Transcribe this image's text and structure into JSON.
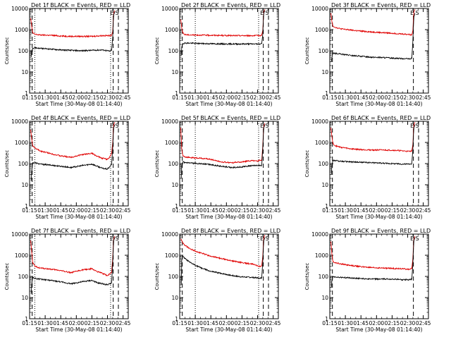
{
  "figure": {
    "colors": {
      "events": "#000000",
      "lld": "#e00000",
      "frame": "#000000",
      "background": "#ffffff"
    },
    "xtick_labels": [
      "01:15",
      "01:30",
      "01:45",
      "02:00",
      "02:15",
      "02:30",
      "02:45"
    ],
    "ytick_labels": [
      "1",
      "10",
      "100",
      "1000",
      "10000"
    ],
    "ylabel": "Counts/sec",
    "markers": [
      "E",
      "S"
    ]
  },
  "chart_data": [
    {
      "type": "line",
      "title": "Det 1f  BLACK = Events, RED = LLD",
      "xlabel": "Start Time (30-May-08 01:14:40)",
      "ylabel": "Counts/sec",
      "x_unit": "minutes",
      "xlim": [
        75,
        170
      ],
      "ylim": [
        1,
        10000
      ],
      "yscale": "log",
      "series": [
        {
          "x": [
            76,
            77,
            78,
            80,
            85,
            95,
            105,
            115,
            125,
            135,
            145,
            150,
            152,
            154,
            155,
            155.5,
            156,
            157
          ],
          "values": [
            3500,
            1500,
            700,
            600,
            560,
            540,
            500,
            480,
            480,
            480,
            520,
            520,
            520,
            540,
            800,
            2500,
            6000,
            8000
          ]
        },
        {
          "x": [
            76.5,
            77,
            78,
            80,
            85,
            95,
            105,
            115,
            125,
            135,
            145,
            150,
            152,
            154,
            155,
            155.5,
            156,
            157
          ],
          "values": [
            50,
            100,
            130,
            140,
            130,
            120,
            110,
            105,
            100,
            105,
            110,
            100,
            95,
            105,
            400,
            2000,
            5000,
            7000
          ]
        }
      ],
      "vlines_dotted": [
        80,
        153
      ],
      "vlines_dashed": [
        77.5,
        155.5,
        160.5
      ]
    },
    {
      "type": "line",
      "title": "Det 2f  BLACK = Events, RED = LLD",
      "xlabel": "Start Time (30-May-08 01:14:40)",
      "ylabel": "Counts/sec",
      "x_unit": "minutes",
      "xlim": [
        75,
        170
      ],
      "ylim": [
        1,
        10000
      ],
      "yscale": "log",
      "series": [
        {
          "x": [
            76,
            77,
            78,
            80,
            85,
            95,
            105,
            115,
            125,
            135,
            145,
            150,
            152,
            154,
            155,
            155.5,
            156,
            157
          ],
          "values": [
            3000,
            1200,
            700,
            580,
            560,
            550,
            540,
            530,
            520,
            520,
            520,
            520,
            520,
            560,
            900,
            3000,
            7000,
            9000
          ]
        },
        {
          "x": [
            76.5,
            77,
            78,
            80,
            85,
            95,
            105,
            115,
            125,
            135,
            145,
            150,
            152,
            154,
            155,
            155.5,
            156,
            157
          ],
          "values": [
            60,
            150,
            220,
            230,
            230,
            220,
            215,
            210,
            210,
            210,
            210,
            210,
            210,
            220,
            600,
            2500,
            6000,
            8000
          ]
        }
      ],
      "vlines_dotted": [
        90,
        151
      ],
      "vlines_dashed": [
        77.5,
        155.5,
        160.5
      ]
    },
    {
      "type": "line",
      "title": "Det 3f  BLACK = Events, RED = LLD",
      "xlabel": "Start Time (30-May-08 01:14:40)",
      "ylabel": "Counts/sec",
      "x_unit": "minutes",
      "xlim": [
        75,
        170
      ],
      "ylim": [
        1,
        10000
      ],
      "yscale": "log",
      "series": [
        {
          "x": [
            76,
            77,
            78,
            80,
            85,
            95,
            105,
            115,
            125,
            135,
            145,
            150,
            152,
            154,
            155,
            155.5,
            156,
            157
          ],
          "values": [
            6000,
            2500,
            1500,
            1300,
            1100,
            950,
            850,
            780,
            720,
            680,
            620,
            600,
            580,
            560,
            900,
            3000,
            7000,
            9000
          ]
        },
        {
          "x": [
            76.5,
            77,
            78,
            80,
            85,
            95,
            105,
            115,
            125,
            135,
            145,
            150,
            152,
            154,
            155,
            155.5,
            156,
            157
          ],
          "values": [
            30,
            45,
            80,
            75,
            70,
            60,
            55,
            50,
            48,
            45,
            43,
            42,
            40,
            45,
            300,
            1500,
            4000,
            6000
          ]
        }
      ],
      "vlines_dotted": [],
      "vlines_dashed": [
        77.5,
        155.5
      ]
    },
    {
      "type": "line",
      "title": "Det 4f  BLACK = Events, RED = LLD",
      "xlabel": "Start Time (30-May-08 01:14:40)",
      "ylabel": "Counts/sec",
      "x_unit": "minutes",
      "xlim": [
        75,
        170
      ],
      "ylim": [
        1,
        10000
      ],
      "yscale": "log",
      "series": [
        {
          "x": [
            76,
            77,
            78,
            80,
            85,
            95,
            105,
            115,
            125,
            135,
            140,
            145,
            150,
            152,
            154,
            155,
            155.5,
            156,
            157
          ],
          "values": [
            4000,
            1500,
            700,
            550,
            400,
            300,
            230,
            200,
            260,
            310,
            220,
            180,
            160,
            200,
            300,
            900,
            3000,
            7000,
            9000
          ]
        },
        {
          "x": [
            76.5,
            77,
            78,
            80,
            85,
            95,
            105,
            115,
            125,
            135,
            140,
            145,
            150,
            152,
            154,
            155,
            155.5,
            156,
            157
          ],
          "values": [
            15,
            40,
            110,
            110,
            95,
            85,
            75,
            65,
            80,
            95,
            75,
            60,
            55,
            70,
            90,
            500,
            2000,
            5000,
            7000
          ]
        }
      ],
      "vlines_dotted": [
        80,
        153
      ],
      "vlines_dashed": [
        77.5,
        155.5,
        160.5
      ]
    },
    {
      "type": "line",
      "title": "Det 5f  BLACK = Events, RED = LLD",
      "xlabel": "Start Time (30-May-08 01:14:40)",
      "ylabel": "Counts/sec",
      "x_unit": "minutes",
      "xlim": [
        75,
        170
      ],
      "ylim": [
        1,
        10000
      ],
      "yscale": "log",
      "series": [
        {
          "x": [
            76,
            76.5,
            77,
            78,
            80,
            85,
            95,
            105,
            115,
            125,
            135,
            145,
            150,
            152,
            154,
            155,
            155.5,
            156,
            157
          ],
          "values": [
            5000,
            1500,
            500,
            240,
            210,
            190,
            180,
            160,
            120,
            110,
            120,
            140,
            130,
            150,
            140,
            700,
            2500,
            6000,
            8000
          ]
        },
        {
          "x": [
            76.5,
            77,
            78,
            80,
            85,
            95,
            105,
            115,
            125,
            135,
            145,
            150,
            152,
            154,
            155,
            155.5,
            156,
            157
          ],
          "values": [
            20,
            80,
            120,
            110,
            105,
            100,
            90,
            75,
            65,
            70,
            80,
            80,
            80,
            80,
            500,
            2000,
            5000,
            7000
          ]
        }
      ],
      "vlines_dotted": [
        90,
        151
      ],
      "vlines_dashed": [
        77.5,
        155.5,
        160.5
      ]
    },
    {
      "type": "line",
      "title": "Det 6f  BLACK = Events, RED = LLD",
      "xlabel": "Start Time (30-May-08 01:14:40)",
      "ylabel": "Counts/sec",
      "x_unit": "minutes",
      "xlim": [
        75,
        170
      ],
      "ylim": [
        1,
        10000
      ],
      "yscale": "log",
      "series": [
        {
          "x": [
            76,
            77,
            78,
            80,
            85,
            95,
            105,
            115,
            125,
            135,
            145,
            150,
            152,
            154,
            155,
            155.5,
            156,
            157
          ],
          "values": [
            5000,
            2000,
            900,
            700,
            600,
            500,
            460,
            440,
            440,
            430,
            400,
            380,
            380,
            400,
            800,
            3000,
            7000,
            9000
          ]
        },
        {
          "x": [
            76.5,
            77,
            78,
            80,
            85,
            95,
            105,
            115,
            125,
            135,
            145,
            150,
            152,
            154,
            155,
            155.5,
            156,
            157
          ],
          "values": [
            30,
            80,
            140,
            140,
            130,
            120,
            115,
            110,
            105,
            100,
            95,
            95,
            95,
            100,
            500,
            2000,
            5000,
            7000
          ]
        }
      ],
      "vlines_dotted": [],
      "vlines_dashed": [
        77.5,
        155.5,
        160.5
      ]
    },
    {
      "type": "line",
      "title": "Det 7f  BLACK = Events, RED = LLD",
      "xlabel": "Start Time (30-May-08 01:14:40)",
      "ylabel": "Counts/sec",
      "x_unit": "minutes",
      "xlim": [
        75,
        170
      ],
      "ylim": [
        1,
        10000
      ],
      "yscale": "log",
      "series": [
        {
          "x": [
            76,
            77,
            78,
            80,
            85,
            95,
            105,
            115,
            125,
            135,
            140,
            145,
            150,
            152,
            154,
            155,
            155.5,
            156,
            157
          ],
          "values": [
            5000,
            1500,
            450,
            300,
            250,
            220,
            190,
            150,
            200,
            230,
            170,
            140,
            110,
            130,
            150,
            700,
            2500,
            6000,
            8000
          ]
        },
        {
          "x": [
            76.5,
            77,
            78,
            80,
            85,
            95,
            105,
            115,
            125,
            135,
            140,
            145,
            150,
            152,
            154,
            155,
            155.5,
            156,
            157
          ],
          "values": [
            15,
            40,
            90,
            80,
            75,
            65,
            55,
            45,
            55,
            65,
            50,
            45,
            40,
            45,
            50,
            400,
            1800,
            5000,
            7000
          ]
        }
      ],
      "vlines_dotted": [
        80,
        153
      ],
      "vlines_dashed": [
        77.5,
        155.5,
        160.5
      ]
    },
    {
      "type": "line",
      "title": "Det 8f  BLACK = Events, RED = LLD",
      "xlabel": "Start Time (30-May-08 01:14:40)",
      "ylabel": "Counts/sec",
      "x_unit": "minutes",
      "xlim": [
        75,
        170
      ],
      "ylim": [
        1,
        10000
      ],
      "yscale": "log",
      "series": [
        {
          "x": [
            76,
            77,
            78,
            80,
            85,
            95,
            105,
            115,
            125,
            135,
            145,
            150,
            152,
            154,
            155,
            155.5,
            156,
            157
          ],
          "values": [
            6000,
            5000,
            3800,
            3000,
            2000,
            1300,
            900,
            700,
            550,
            450,
            380,
            320,
            300,
            320,
            900,
            3000,
            7000,
            9000
          ]
        },
        {
          "x": [
            76.5,
            77,
            78,
            80,
            85,
            95,
            105,
            115,
            125,
            135,
            145,
            150,
            152,
            154,
            155,
            155.5,
            156,
            157
          ],
          "values": [
            40,
            600,
            900,
            700,
            450,
            260,
            170,
            140,
            110,
            95,
            90,
            85,
            80,
            85,
            500,
            2000,
            5000,
            7000
          ]
        }
      ],
      "vlines_dotted": [
        90,
        151
      ],
      "vlines_dashed": [
        77.5,
        155.5,
        160.5
      ]
    },
    {
      "type": "line",
      "title": "Det 9f  BLACK = Events, RED = LLD",
      "xlabel": "Start Time (30-May-08 01:14:40)",
      "ylabel": "Counts/sec",
      "x_unit": "minutes",
      "xlim": [
        75,
        170
      ],
      "ylim": [
        1,
        10000
      ],
      "yscale": "log",
      "series": [
        {
          "x": [
            76,
            77,
            78,
            80,
            85,
            95,
            105,
            115,
            125,
            135,
            145,
            150,
            152,
            154,
            155,
            155.5,
            156,
            157
          ],
          "values": [
            4500,
            1200,
            500,
            450,
            400,
            330,
            290,
            260,
            250,
            240,
            230,
            220,
            220,
            240,
            700,
            2500,
            6000,
            8000
          ]
        },
        {
          "x": [
            76.5,
            77,
            78,
            80,
            85,
            95,
            105,
            115,
            125,
            135,
            145,
            150,
            152,
            154,
            155,
            155.5,
            156,
            157
          ],
          "values": [
            30,
            60,
            95,
            95,
            90,
            85,
            80,
            75,
            75,
            75,
            70,
            70,
            70,
            75,
            400,
            1800,
            5000,
            7000
          ]
        }
      ],
      "vlines_dotted": [],
      "vlines_dashed": [
        77.5,
        155.5
      ]
    }
  ]
}
